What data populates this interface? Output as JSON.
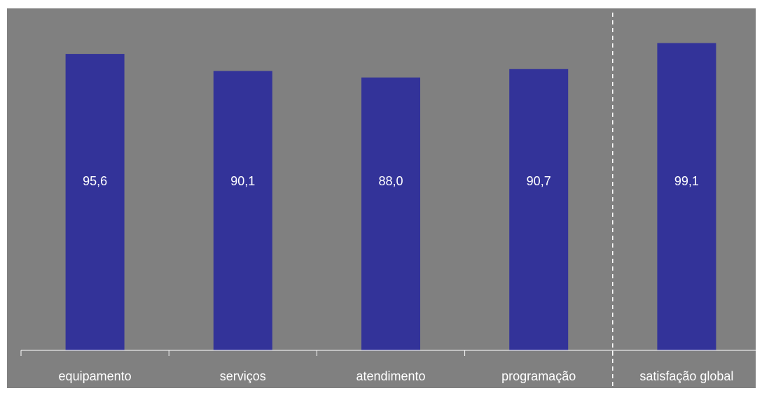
{
  "colors": {
    "plot_background": "#808080",
    "bar_fill": "#333399",
    "axis_line": "#ffffff",
    "text": "#ffffff",
    "separator": "#ffffff"
  },
  "chart_data": {
    "type": "bar",
    "title": "",
    "xlabel": "",
    "ylabel": "",
    "categories": [
      "equipamento",
      "serviços",
      "atendimento",
      "programação",
      "satisfação global"
    ],
    "values": [
      95.6,
      90.1,
      88.0,
      90.7,
      99.1
    ],
    "value_labels": [
      "95,6",
      "90,1",
      "88,0",
      "90,7",
      "99,1"
    ],
    "ylim": [
      0,
      100
    ],
    "grid": false,
    "legend": "none",
    "show_y_axis": false,
    "separator_before_category": "satisfação global",
    "separator_style": "dashed"
  }
}
